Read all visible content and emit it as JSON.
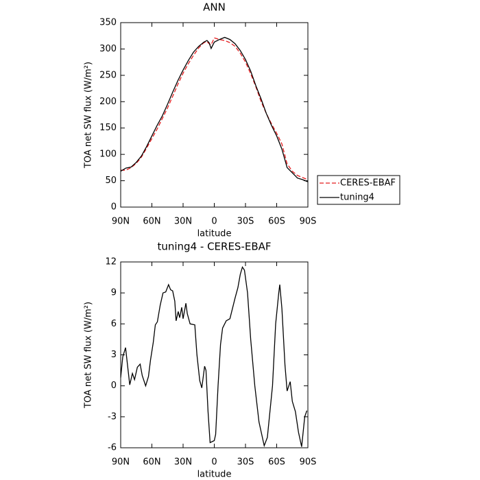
{
  "chart_data": [
    {
      "type": "line",
      "title": "ANN",
      "x_label": "latitude",
      "y_label": "TOA net SW flux (W/m²)",
      "x": [
        90,
        85,
        80,
        75,
        70,
        65,
        60,
        55,
        50,
        45,
        40,
        35,
        30,
        25,
        20,
        15,
        10,
        7,
        5,
        3,
        0,
        -5,
        -10,
        -15,
        -20,
        -25,
        -30,
        -35,
        -40,
        -45,
        -50,
        -55,
        -60,
        -65,
        -70,
        -75,
        -80,
        -85,
        -90
      ],
      "series": [
        {
          "name": "CERES-EBAF",
          "color": "#e41a1c",
          "dash": true,
          "values": [
            70,
            70,
            75,
            83,
            95,
            112,
            130,
            148,
            168,
            188,
            210,
            233,
            254,
            272,
            288,
            302,
            312,
            314,
            310,
            308,
            321,
            318,
            316,
            312,
            305,
            292,
            275,
            253,
            228,
            200,
            178,
            158,
            140,
            120,
            82,
            68,
            60,
            56,
            52
          ]
        },
        {
          "name": "tuning4",
          "color": "#000000",
          "dash": false,
          "values": [
            68,
            74,
            76,
            85,
            97,
            115,
            135,
            155,
            173,
            195,
            218,
            240,
            260,
            278,
            294,
            305,
            313,
            316,
            312,
            301,
            313,
            318,
            322,
            318,
            310,
            297,
            280,
            258,
            230,
            205,
            178,
            155,
            135,
            110,
            75,
            65,
            55,
            52,
            48
          ]
        }
      ],
      "xlim": [
        90,
        -90
      ],
      "xticks": [
        {
          "value": 90,
          "label": "90N"
        },
        {
          "value": 60,
          "label": "60N"
        },
        {
          "value": 30,
          "label": "30N"
        },
        0,
        {
          "value": -30,
          "label": "30S"
        },
        {
          "value": -60,
          "label": "60S"
        },
        {
          "value": -90,
          "label": "90S"
        }
      ],
      "ylim": [
        0,
        350
      ],
      "yticks": [
        0,
        50,
        100,
        150,
        200,
        250,
        300,
        350
      ],
      "legend": "right"
    },
    {
      "type": "line",
      "title": "tuning4 - CERES-EBAF",
      "x_label": "latitude",
      "y_label": "TOA net SW flux (W/m²)",
      "x": [
        90,
        88,
        85.3,
        81.3,
        78.7,
        76.7,
        74,
        71.3,
        69.3,
        66,
        63.3,
        61.3,
        58.7,
        56.7,
        54.7,
        52,
        49.3,
        46.7,
        44,
        42,
        40,
        38,
        36.7,
        34.7,
        33.3,
        31.3,
        30,
        27.3,
        26,
        23.3,
        18.7,
        16.7,
        14,
        12,
        9.3,
        8,
        6,
        4,
        0,
        -1.3,
        -3.6,
        -6,
        -8,
        -11.5,
        -15,
        -20,
        -22.7,
        -25,
        -27,
        -29,
        -32,
        -35,
        -39,
        -43,
        -48,
        -51,
        -56,
        -59,
        -62,
        -63,
        -65,
        -68,
        -70,
        -73,
        -75,
        -78,
        -81,
        -84,
        -87,
        -89
      ],
      "series": [
        {
          "name": "tuning4",
          "color": "#000000",
          "dash": false,
          "values": [
            0.8,
            2.8,
            3.7,
            0.1,
            1.2,
            0.6,
            1.8,
            2.1,
            1.0,
            0.0,
            0.9,
            2.5,
            4.2,
            5.9,
            6.2,
            7.8,
            9.0,
            9.1,
            9.8,
            9.3,
            9.2,
            8.2,
            6.3,
            7.2,
            6.6,
            7.6,
            6.5,
            8.0,
            7.0,
            6.0,
            5.9,
            3.0,
            0.5,
            -0.2,
            1.9,
            1.5,
            -2.5,
            -5.5,
            -5.3,
            -4.7,
            0,
            4,
            5.6,
            6.3,
            6.5,
            8.5,
            9.5,
            10.8,
            11.5,
            11.2,
            9,
            4.5,
            0,
            -3.5,
            -5.8,
            -5,
            0,
            6,
            9,
            9.8,
            7.5,
            2,
            -0.5,
            0.4,
            -1.5,
            -2.5,
            -4.5,
            -5.9,
            -3,
            -2.4
          ]
        }
      ],
      "xlim": [
        90,
        -90
      ],
      "xticks": [
        {
          "value": 90,
          "label": "90N"
        },
        {
          "value": 60,
          "label": "60N"
        },
        {
          "value": 30,
          "label": "30N"
        },
        0,
        {
          "value": -30,
          "label": "30S"
        },
        {
          "value": -60,
          "label": "60S"
        },
        {
          "value": -90,
          "label": "90S"
        }
      ],
      "ylim": [
        -6,
        12
      ],
      "yticks": [
        -6,
        -3,
        0,
        3,
        6,
        9,
        12
      ]
    }
  ]
}
